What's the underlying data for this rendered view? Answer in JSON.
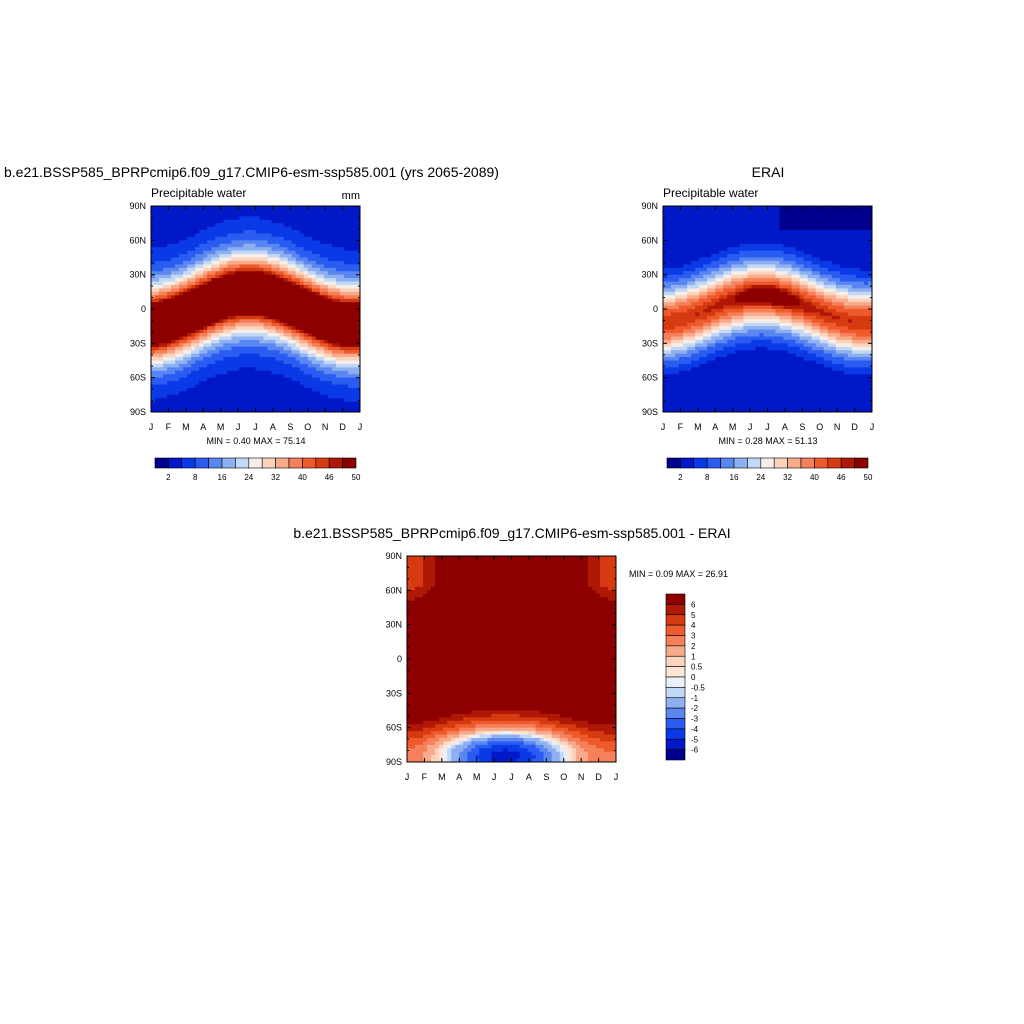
{
  "chart_data": [
    {
      "type": "heatmap",
      "title": "b.e21.BSSP585_BPRPcmip6.f09_g17.CMIP6-esm-ssp585.001 (yrs 2065-2089)",
      "subtitle_left": "Precipitable water",
      "units": "mm",
      "x_ticks": [
        "J",
        "F",
        "M",
        "A",
        "M",
        "J",
        "J",
        "A",
        "S",
        "O",
        "N",
        "D",
        "J"
      ],
      "y_ticks": [
        "90N",
        "60N",
        "30N",
        "0",
        "30S",
        "60S",
        "90S"
      ],
      "ylim": [
        -90,
        90
      ],
      "stats": "MIN =   0.40 MAX =  75.14",
      "min": 0.4,
      "max": 75.14,
      "colorbar_labels": [
        "2",
        "8",
        "16",
        "24",
        "32",
        "40",
        "46",
        "50"
      ],
      "field": "model"
    },
    {
      "type": "heatmap",
      "title": "ERAI",
      "subtitle_left": "Precipitable water",
      "x_ticks": [
        "J",
        "F",
        "M",
        "A",
        "M",
        "J",
        "J",
        "A",
        "S",
        "O",
        "N",
        "D",
        "J"
      ],
      "y_ticks": [
        "90N",
        "60N",
        "30N",
        "0",
        "30S",
        "60S",
        "90S"
      ],
      "ylim": [
        -90,
        90
      ],
      "stats": "MIN =   0.28 MAX =  51.13",
      "min": 0.28,
      "max": 51.13,
      "colorbar_labels": [
        "2",
        "8",
        "16",
        "24",
        "32",
        "40",
        "46",
        "50"
      ],
      "field": "obs"
    },
    {
      "type": "heatmap",
      "title": "b.e21.BSSP585_BPRPcmip6.f09_g17.CMIP6-esm-ssp585.001 - ERAI",
      "x_ticks": [
        "J",
        "F",
        "M",
        "A",
        "M",
        "J",
        "J",
        "A",
        "S",
        "O",
        "N",
        "D",
        "J"
      ],
      "y_ticks": [
        "90N",
        "60N",
        "30N",
        "0",
        "30S",
        "60S",
        "90S"
      ],
      "ylim": [
        -90,
        90
      ],
      "stats": "MIN =   0.09 MAX =  26.91",
      "min": 0.09,
      "max": 26.91,
      "colorbar_labels": [
        "6",
        "5",
        "4",
        "3",
        "2",
        "1",
        "0.5",
        "0",
        "-0.5",
        "-1",
        "-2",
        "-3",
        "-4",
        "-5",
        "-6"
      ],
      "field": "diff"
    }
  ],
  "palettes": {
    "abs": [
      "#00008f",
      "#0018c8",
      "#0a3ae6",
      "#2a5cf2",
      "#5a86f2",
      "#8fb0f0",
      "#c2d8f7",
      "#f5efe8",
      "#fbd3bf",
      "#f8ab8a",
      "#f5805a",
      "#ef5a2c",
      "#d63a10",
      "#b01806",
      "#8c0000"
    ],
    "diff": [
      "#00008f",
      "#0018c8",
      "#0a3ae6",
      "#2a5cf2",
      "#5a86f2",
      "#8fb0f0",
      "#c2d8f7",
      "#eaf0f8",
      "#fde6d8",
      "#fbd3bf",
      "#f8ab8a",
      "#f5805a",
      "#ef5a2c",
      "#d63a10",
      "#b01806",
      "#8c0000"
    ]
  }
}
